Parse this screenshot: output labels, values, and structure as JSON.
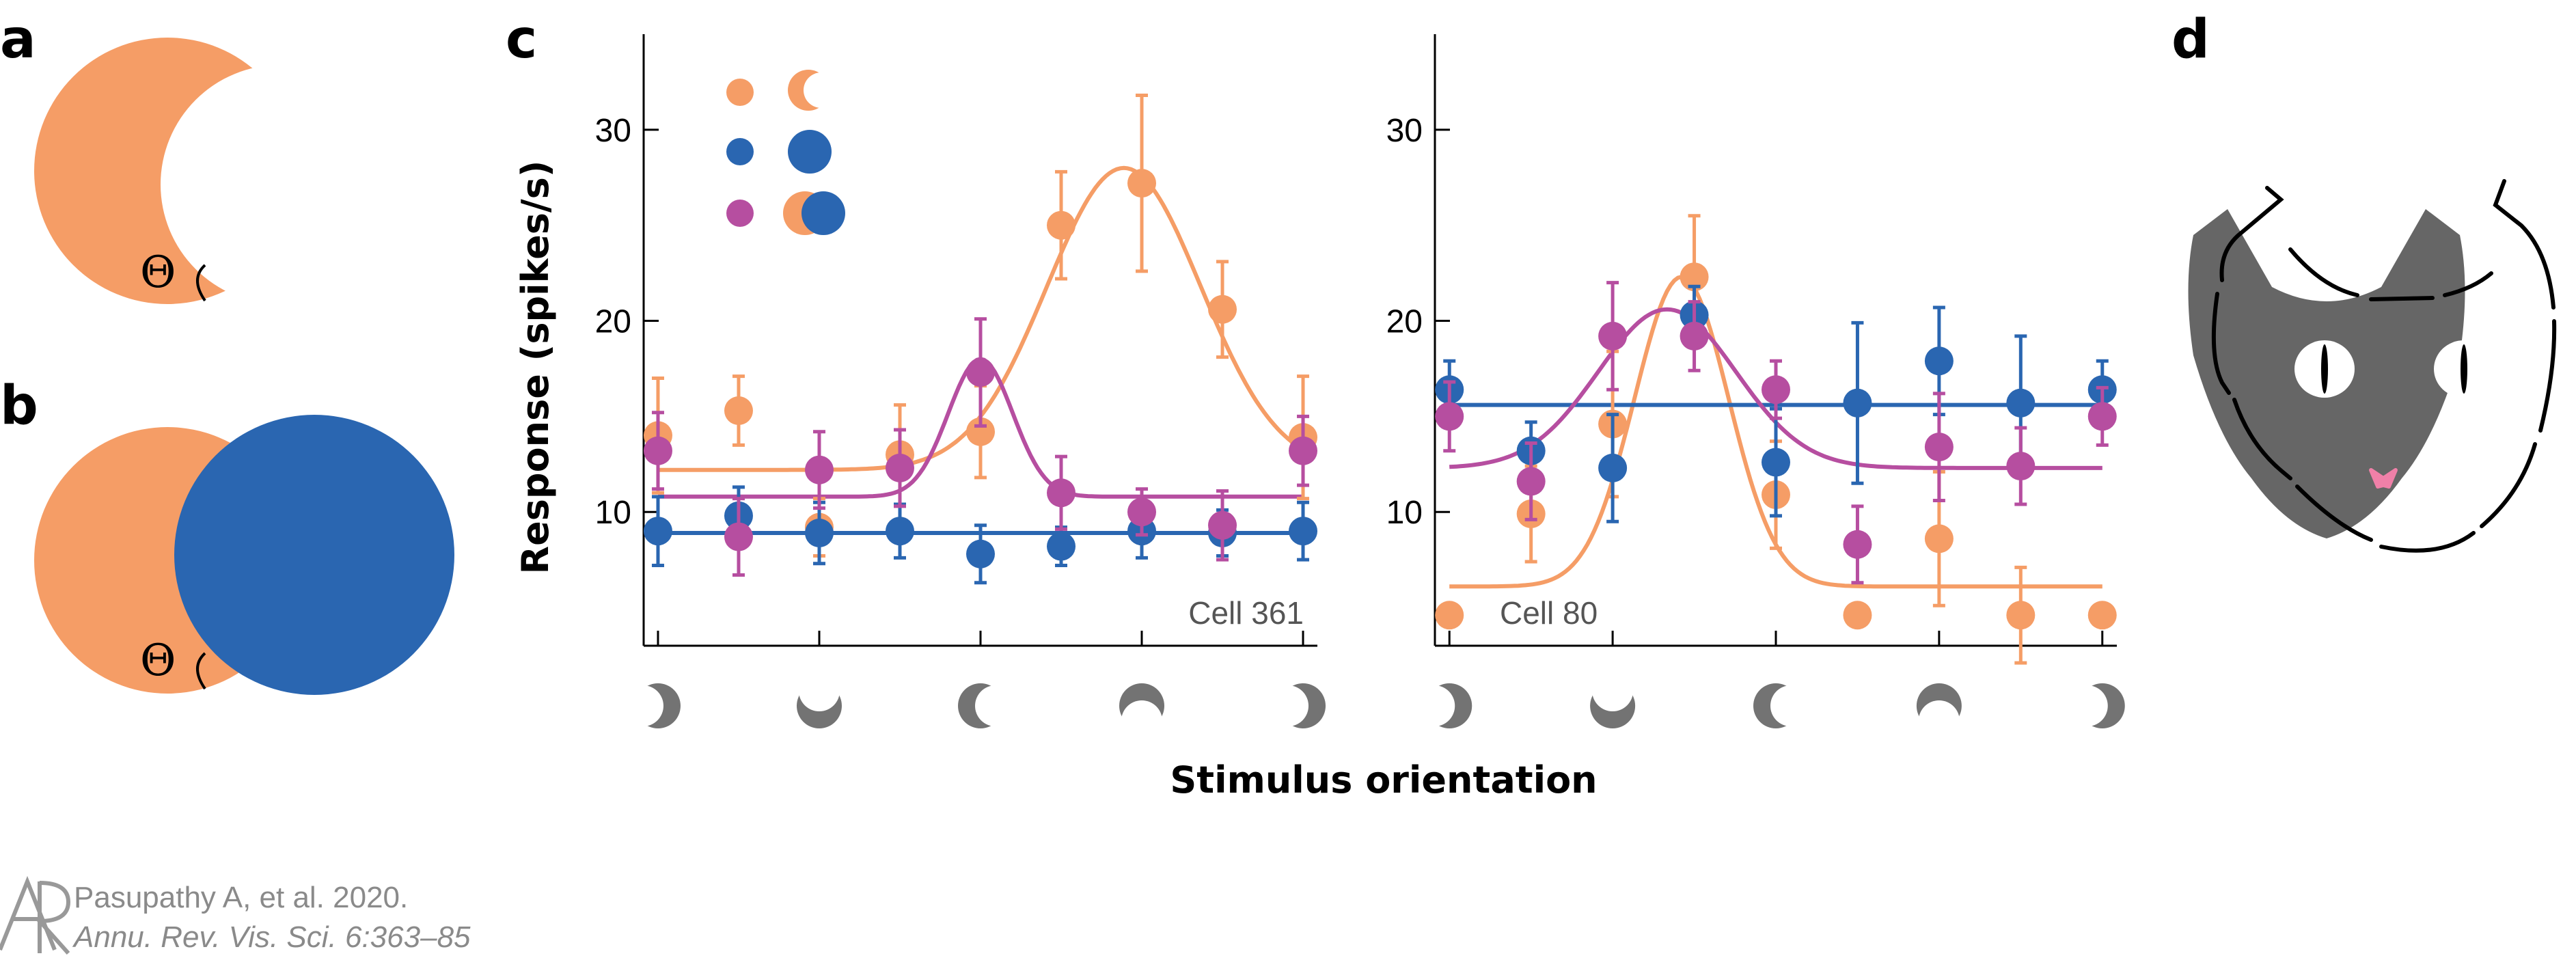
{
  "panel_labels": {
    "a": "a",
    "b": "b",
    "c": "c",
    "d": "d"
  },
  "panel_a": {
    "theta_symbol": "Θ"
  },
  "panel_b": {
    "theta_symbol": "Θ"
  },
  "colors": {
    "orange": "#f59d66",
    "blue": "#2a66b1",
    "magenta": "#b64ea0",
    "shape_gray": "#737373",
    "cat_gray": "#666666",
    "nose_pink": "#f080a8"
  },
  "legend": {
    "rows": [
      "orange crescent alone",
      "blue circle alone",
      "crescent and circle together"
    ]
  },
  "orientation_icons": [
    "crescent-open-right",
    "crescent-open-up",
    "crescent-open-left",
    "crescent-open-down",
    "crescent-open-right"
  ],
  "chart_data": [
    {
      "type": "scatter",
      "title": "",
      "annotation": "Cell 361",
      "ylabel": "Response (spikes/s)",
      "xlabel": "Stimulus orientation",
      "ylim": [
        3,
        35
      ],
      "yticks": [
        10,
        20,
        30
      ],
      "x_units": "orientation (deg)",
      "xlim": [
        -8,
        368
      ],
      "series": [
        {
          "name": "crescent",
          "color": "#f59d66",
          "x": [
            0,
            45,
            90,
            135,
            180,
            225,
            270,
            315,
            360
          ],
          "y": [
            14,
            15.3,
            9.2,
            13,
            14.2,
            25,
            27.2,
            20.6,
            13.9
          ],
          "err": [
            3,
            1.8,
            1.5,
            2.6,
            2.4,
            2.8,
            4.6,
            2.5,
            3.2
          ],
          "fit": {
            "baseline": 12.2,
            "amp": 15.8,
            "mu": 260,
            "sigma": 43
          }
        },
        {
          "name": "circle",
          "color": "#2a66b1",
          "x": [
            0,
            45,
            90,
            135,
            180,
            225,
            270,
            315,
            360
          ],
          "y": [
            9,
            9.8,
            8.9,
            9,
            7.8,
            8.2,
            9,
            8.9,
            9
          ],
          "err": [
            1.8,
            1.5,
            1.6,
            1.4,
            1.5,
            1.0,
            1.4,
            1.2,
            1.5
          ],
          "fit": {
            "baseline": 8.9,
            "amp": 0,
            "mu": 180,
            "sigma": 40
          }
        },
        {
          "name": "together",
          "color": "#b64ea0",
          "x": [
            0,
            45,
            90,
            135,
            180,
            225,
            270,
            315,
            360
          ],
          "y": [
            13.2,
            8.7,
            12.2,
            12.3,
            17.3,
            11,
            10,
            9.3,
            13.2
          ],
          "err": [
            2.0,
            2.0,
            2.0,
            2.0,
            2.8,
            1.9,
            1.2,
            1.8,
            1.8
          ],
          "fit": {
            "baseline": 10.8,
            "amp": 7.2,
            "mu": 180,
            "sigma": 18
          }
        }
      ]
    },
    {
      "type": "scatter",
      "title": "",
      "annotation": "Cell 80",
      "ylabel": "",
      "xlabel": "Stimulus orientation",
      "ylim": [
        3,
        35
      ],
      "yticks": [
        10,
        20,
        30
      ],
      "x_units": "orientation (deg)",
      "xlim": [
        -8,
        368
      ],
      "series": [
        {
          "name": "crescent",
          "color": "#f59d66",
          "x": [
            0,
            45,
            90,
            135,
            180,
            225,
            270,
            315,
            360
          ],
          "y": [
            4.6,
            9.9,
            14.6,
            22.3,
            10.9,
            4.6,
            8.6,
            4.6,
            4.6
          ],
          "err": [
            0,
            2.5,
            3.8,
            3.2,
            2.8,
            0,
            3.5,
            2.5,
            0
          ],
          "fit": {
            "baseline": 6.1,
            "amp": 16.2,
            "mu": 128,
            "sigma": 26
          }
        },
        {
          "name": "circle",
          "color": "#2a66b1",
          "x": [
            0,
            45,
            90,
            135,
            180,
            225,
            270,
            315,
            360
          ],
          "y": [
            16.4,
            13.2,
            12.3,
            20.3,
            12.6,
            15.7,
            17.9,
            15.7,
            16.4
          ],
          "err": [
            1.5,
            1.5,
            2.8,
            1.5,
            2.8,
            4.2,
            2.8,
            3.5,
            1.5
          ],
          "fit": {
            "baseline": 15.6,
            "amp": 0,
            "mu": 180,
            "sigma": 40
          }
        },
        {
          "name": "together",
          "color": "#b64ea0",
          "x": [
            0,
            45,
            90,
            135,
            180,
            225,
            270,
            315,
            360
          ],
          "y": [
            15,
            11.6,
            19.2,
            19.2,
            16.4,
            8.3,
            13.4,
            12.4,
            15
          ],
          "err": [
            1.8,
            2.0,
            2.8,
            1.8,
            1.5,
            2.0,
            2.8,
            2.0,
            1.5
          ],
          "fit": {
            "baseline": 12.3,
            "amp": 8.3,
            "mu": 120,
            "sigma": 38
          }
        }
      ]
    }
  ],
  "citation": {
    "line1": "Pasupathy A, et al. 2020.",
    "line2": "Annu. Rev. Vis. Sci. 6:363–85",
    "logo": "AR"
  }
}
